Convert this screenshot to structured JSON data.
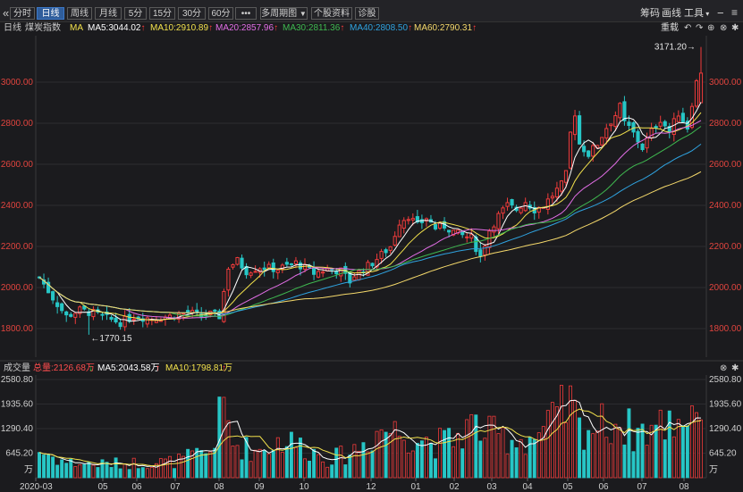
{
  "toolbar": {
    "collapse_icon": "«",
    "periods": [
      "分时",
      "日线",
      "周线",
      "月线",
      "5分",
      "15分",
      "30分",
      "60分",
      "•••"
    ],
    "active_period": "日线",
    "multi_period": "多周期图",
    "stock_info": "个股资料",
    "diagnose": "诊股",
    "right": {
      "chips": "筹码",
      "draw": "画线",
      "tools": "工具"
    }
  },
  "header": {
    "period": "日线",
    "name": "煤炭指数",
    "ma_label": "MA",
    "ma": [
      {
        "label": "MA5:3044.02",
        "color": "#ffffff"
      },
      {
        "label": "MA10:2910.89",
        "color": "#f2e14c"
      },
      {
        "label": "MA20:2857.96",
        "color": "#e26ee6"
      },
      {
        "label": "MA30:2811.36",
        "color": "#3fb950"
      },
      {
        "label": "MA40:2808.50",
        "color": "#2fa3e0"
      },
      {
        "label": "MA60:2790.31",
        "color": "#f5d96b"
      }
    ],
    "reweight": "重载"
  },
  "volume_header": {
    "title": "成交量",
    "total": "总量:2126.68万",
    "ma5": "MA5:2043.58万",
    "ma10": "MA10:1798.81万"
  },
  "chart_data": {
    "type": "candlestick",
    "price_axis": {
      "ticks": [
        "3000.00",
        "2800.00",
        "2600.00",
        "2400.00",
        "2200.00",
        "2000.00",
        "1800.00"
      ],
      "values": [
        3000,
        2800,
        2600,
        2400,
        2200,
        2000,
        1800
      ]
    },
    "annotations": {
      "high": "3171.20",
      "low": "1770.15"
    },
    "volume_axis": {
      "ticks": [
        "2580.80",
        "1935.60",
        "1290.40",
        "645.20"
      ],
      "values": [
        2580.8,
        1935.6,
        1290.4,
        645.2
      ],
      "unit": "万"
    },
    "date_axis": [
      "2020-03",
      "05",
      "06",
      "07",
      "08",
      "09",
      "10",
      "12",
      "01",
      "02",
      "03",
      "04",
      "05",
      "06",
      "07",
      "08"
    ],
    "price_path": [
      [
        0,
        2050
      ],
      [
        3,
        1950
      ],
      [
        6,
        1860
      ],
      [
        9,
        1890
      ],
      [
        12,
        1875
      ],
      [
        15,
        1850
      ],
      [
        18,
        1830
      ],
      [
        21,
        1860
      ],
      [
        25,
        1850
      ],
      [
        29,
        1860
      ],
      [
        33,
        1880
      ],
      [
        36,
        1860
      ],
      [
        38,
        1870
      ],
      [
        40,
        1860
      ],
      [
        42,
        2100
      ],
      [
        44,
        2130
      ],
      [
        46,
        2080
      ],
      [
        49,
        2100
      ],
      [
        53,
        2090
      ],
      [
        57,
        2120
      ],
      [
        61,
        2070
      ],
      [
        64,
        2090
      ],
      [
        67,
        2080
      ],
      [
        69,
        2030
      ],
      [
        70,
        2060
      ],
      [
        74,
        2120
      ],
      [
        78,
        2200
      ],
      [
        80,
        2320
      ],
      [
        82,
        2350
      ],
      [
        84,
        2300
      ],
      [
        86,
        2340
      ],
      [
        88,
        2290
      ],
      [
        90,
        2300
      ],
      [
        93,
        2260
      ],
      [
        96,
        2240
      ],
      [
        98,
        2150
      ],
      [
        100,
        2280
      ],
      [
        102,
        2350
      ],
      [
        104,
        2400
      ],
      [
        106,
        2380
      ],
      [
        108,
        2420
      ],
      [
        110,
        2380
      ],
      [
        112,
        2400
      ],
      [
        114,
        2450
      ],
      [
        116,
        2500
      ],
      [
        117,
        2550
      ],
      [
        118,
        2750
      ],
      [
        119,
        2850
      ],
      [
        120,
        2700
      ],
      [
        122,
        2650
      ],
      [
        124,
        2700
      ],
      [
        126,
        2780
      ],
      [
        128,
        2840
      ],
      [
        129,
        2880
      ],
      [
        130,
        2800
      ],
      [
        131,
        2780
      ],
      [
        132,
        2750
      ],
      [
        134,
        2680
      ],
      [
        136,
        2760
      ],
      [
        138,
        2820
      ],
      [
        140,
        2760
      ],
      [
        142,
        2850
      ],
      [
        144,
        2780
      ],
      [
        145,
        2900
      ],
      [
        146,
        3000
      ],
      [
        147,
        3050
      ]
    ],
    "volume_path": [
      [
        0,
        700
      ],
      [
        6,
        400
      ],
      [
        12,
        350
      ],
      [
        20,
        380
      ],
      [
        30,
        420
      ],
      [
        38,
        700
      ],
      [
        40,
        1500
      ],
      [
        41,
        1850
      ],
      [
        43,
        900
      ],
      [
        48,
        700
      ],
      [
        54,
        1000
      ],
      [
        58,
        850
      ],
      [
        64,
        500
      ],
      [
        68,
        600
      ],
      [
        72,
        900
      ],
      [
        76,
        1300
      ],
      [
        80,
        1200
      ],
      [
        84,
        1100
      ],
      [
        88,
        900
      ],
      [
        92,
        1000
      ],
      [
        96,
        1400
      ],
      [
        100,
        1150
      ],
      [
        104,
        1050
      ],
      [
        108,
        1000
      ],
      [
        112,
        1200
      ],
      [
        116,
        1700
      ],
      [
        118,
        1900
      ],
      [
        120,
        1300
      ],
      [
        124,
        1350
      ],
      [
        128,
        1500
      ],
      [
        132,
        1200
      ],
      [
        136,
        1300
      ],
      [
        140,
        1450
      ],
      [
        144,
        1700
      ],
      [
        147,
        2050
      ]
    ]
  }
}
